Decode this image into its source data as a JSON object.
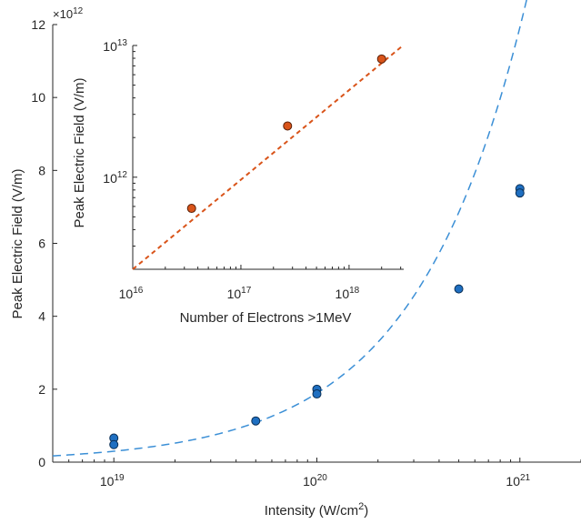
{
  "chart_data": [
    {
      "type": "scatter",
      "role": "main",
      "xscale": "log",
      "yscale": "linear",
      "xlabel_base": "Intensity (W/cm",
      "xlabel_sup": "2",
      "xlabel_tail": ")",
      "ylabel": "Peak Electric Field (V/m)",
      "y_exponent_base": "×10",
      "y_exponent_power": "12",
      "xlim": [
        5e+18,
        2e+21
      ],
      "ylim": [
        0,
        12000000000000.0
      ],
      "xticks": [
        {
          "value": 1e+19,
          "base": "10",
          "exp": "19"
        },
        {
          "value": 1e+20,
          "base": "10",
          "exp": "20"
        },
        {
          "value": 1e+21,
          "base": "10",
          "exp": "21"
        }
      ],
      "yticks": [
        {
          "value": 0,
          "label": "0"
        },
        {
          "value": 2000000000000.0,
          "label": "2"
        },
        {
          "value": 4000000000000.0,
          "label": "4"
        },
        {
          "value": 6000000000000.0,
          "label": "6"
        },
        {
          "value": 8000000000000.0,
          "label": "8"
        },
        {
          "value": 10000000000000.0,
          "label": "10"
        },
        {
          "value": 12000000000000.0,
          "label": "12"
        }
      ],
      "points": [
        {
          "x": 1e+19,
          "y": 660000000000.0
        },
        {
          "x": 1e+19,
          "y": 480000000000.0
        },
        {
          "x": 5e+19,
          "y": 1130000000000.0
        },
        {
          "x": 1e+20,
          "y": 2000000000000.0
        },
        {
          "x": 1e+20,
          "y": 1870000000000.0
        },
        {
          "x": 5e+20,
          "y": 4750000000000.0
        },
        {
          "x": 1e+21,
          "y": 7500000000000.0
        },
        {
          "x": 1e+21,
          "y": 7380000000000.0
        }
      ],
      "fit": {
        "style": "dashed",
        "coef": 0.000189,
        "power": 0.8
      },
      "marker_color": "#1f6fc1",
      "fit_color": "#3b8fd6"
    },
    {
      "type": "scatter",
      "role": "inset",
      "xscale": "log",
      "yscale": "log",
      "xlabel": "Number of Electrons >1MeV",
      "ylabel": "Peak Electric Field (V/m)",
      "xlim": [
        1e+16,
        3.2e+18
      ],
      "ylim": [
        200000000000.0,
        10000000000000.0
      ],
      "xticks": [
        {
          "value": 1e+16,
          "base": "10",
          "exp": "16"
        },
        {
          "value": 1e+17,
          "base": "10",
          "exp": "17"
        },
        {
          "value": 1e+18,
          "base": "10",
          "exp": "18"
        }
      ],
      "yticks": [
        {
          "value": 1000000000000.0,
          "base": "10",
          "exp": "12"
        },
        {
          "value": 10000000000000.0,
          "base": "10",
          "exp": "13"
        }
      ],
      "points": [
        {
          "x": 3.5e+16,
          "y": 580000000000.0
        },
        {
          "x": 2.7e+17,
          "y": 2450000000000.0
        },
        {
          "x": 2e+18,
          "y": 7900000000000.0
        }
      ],
      "fit": {
        "style": "dashed",
        "x0": 1e+16,
        "y0": 200000000000.0,
        "slope": 0.68
      },
      "marker_color": "#d9541a",
      "fit_color": "#d9541a"
    }
  ]
}
